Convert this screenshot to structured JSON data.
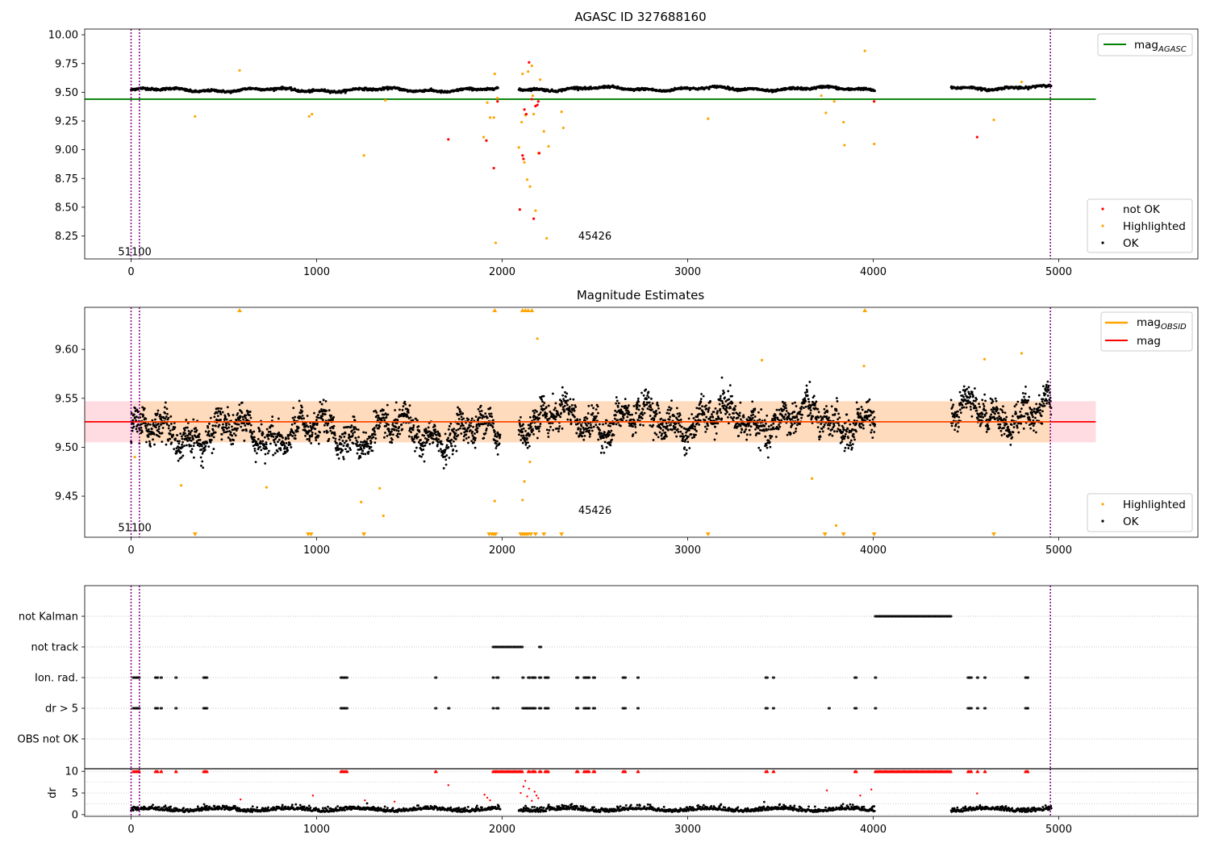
{
  "colors": {
    "ok": "#000000",
    "highlighted": "#ffa500",
    "not_ok": "#ff0000",
    "agasc_line": "#008000",
    "obsid_line": "#ffa500",
    "mag_line": "#ff0000",
    "band_outer": "#ffc0cb",
    "band_inner": "#ffdab9",
    "obs_vline": "#800080",
    "grid": "#b0b0b0"
  },
  "chart_data": [
    {
      "type": "scatter",
      "title": "AGASC ID 327688160",
      "xlim": [
        -250,
        5750
      ],
      "ylim": [
        8.05,
        10.05
      ],
      "x_ticks": [
        0,
        1000,
        2000,
        3000,
        4000,
        5000
      ],
      "y_ticks": [
        8.25,
        8.5,
        8.75,
        9.0,
        9.25,
        9.5,
        9.75,
        10.0
      ],
      "y_tick_labels": [
        "8.25",
        "8.50",
        "8.75",
        "9.00",
        "9.25",
        "9.50",
        "9.75",
        "10.00"
      ],
      "x_tick_labels": [
        "0",
        "1000",
        "2000",
        "3000",
        "4000",
        "5000"
      ],
      "hlines": [
        {
          "name": "mag_AGASC",
          "y": 9.44,
          "x_range": [
            -250,
            5200
          ]
        }
      ],
      "obs_vlines": [
        0,
        45,
        4955
      ],
      "annotations": [
        {
          "text": "51100",
          "x": 20,
          "y": 8.08
        },
        {
          "text": "45426",
          "x": 2500,
          "y": 8.22
        }
      ],
      "legend_line": {
        "label": "mag",
        "subscript": "AGASC",
        "location": "top-right"
      },
      "legend_points": {
        "location": "bottom-right",
        "entries": [
          "not OK",
          "Highlighted",
          "OK"
        ]
      },
      "ok_segments": [
        {
          "x": [
            0,
            1980
          ],
          "base": 9.52,
          "noise": 0.012
        },
        {
          "x": [
            2090,
            4010
          ],
          "base": 9.53,
          "noise": 0.012
        },
        {
          "x": [
            4420,
            4960
          ],
          "base": 9.54,
          "noise": 0.012
        }
      ],
      "highlighted_points": [
        [
          345,
          9.29
        ],
        [
          585,
          9.69
        ],
        [
          960,
          9.29
        ],
        [
          975,
          9.31
        ],
        [
          1255,
          8.95
        ],
        [
          1370,
          9.43
        ],
        [
          1900,
          9.11
        ],
        [
          1920,
          9.41
        ],
        [
          1935,
          9.28
        ],
        [
          1955,
          9.28
        ],
        [
          1960,
          9.66
        ],
        [
          1965,
          8.19
        ],
        [
          1975,
          9.45
        ],
        [
          2090,
          9.02
        ],
        [
          2105,
          9.24
        ],
        [
          2110,
          9.66
        ],
        [
          2120,
          8.89
        ],
        [
          2125,
          9.3
        ],
        [
          2135,
          8.74
        ],
        [
          2140,
          9.68
        ],
        [
          2150,
          8.68
        ],
        [
          2160,
          9.73
        ],
        [
          2165,
          9.47
        ],
        [
          2170,
          9.31
        ],
        [
          2180,
          8.47
        ],
        [
          2195,
          8.97
        ],
        [
          2205,
          9.61
        ],
        [
          2225,
          9.16
        ],
        [
          2240,
          8.23
        ],
        [
          2250,
          9.03
        ],
        [
          2320,
          9.33
        ],
        [
          2330,
          9.19
        ],
        [
          3110,
          9.27
        ],
        [
          3720,
          9.47
        ],
        [
          3745,
          9.32
        ],
        [
          3790,
          9.42
        ],
        [
          3840,
          9.24
        ],
        [
          3845,
          9.04
        ],
        [
          3955,
          9.86
        ],
        [
          4005,
          9.05
        ],
        [
          4650,
          9.26
        ],
        [
          4800,
          9.59
        ]
      ],
      "not_ok_points": [
        [
          1710,
          9.09
        ],
        [
          1915,
          9.08
        ],
        [
          1955,
          8.84
        ],
        [
          1975,
          9.42
        ],
        [
          2095,
          8.48
        ],
        [
          2110,
          8.95
        ],
        [
          2115,
          8.92
        ],
        [
          2120,
          9.35
        ],
        [
          2130,
          9.31
        ],
        [
          2145,
          9.76
        ],
        [
          2160,
          9.44
        ],
        [
          2170,
          8.4
        ],
        [
          2180,
          9.38
        ],
        [
          2190,
          9.39
        ],
        [
          2195,
          9.42
        ],
        [
          2200,
          8.97
        ],
        [
          4005,
          9.42
        ],
        [
          4560,
          9.11
        ]
      ]
    },
    {
      "type": "scatter",
      "title": "Magnitude Estimates",
      "xlim": [
        -250,
        5750
      ],
      "ylim": [
        9.408,
        9.643
      ],
      "x_ticks": [
        0,
        1000,
        2000,
        3000,
        4000,
        5000
      ],
      "y_ticks": [
        9.45,
        9.5,
        9.55,
        9.6
      ],
      "y_tick_labels": [
        "9.45",
        "9.50",
        "9.55",
        "9.60"
      ],
      "x_tick_labels": [
        "0",
        "1000",
        "2000",
        "3000",
        "4000",
        "5000"
      ],
      "mag": 9.526,
      "band_outer": [
        9.505,
        9.547,
        -250,
        5200
      ],
      "band_inner": [
        9.505,
        9.547,
        45,
        4955
      ],
      "obs_vlines": [
        0,
        45,
        4955
      ],
      "annotations": [
        {
          "text": "51100",
          "x": 20,
          "y": 9.414
        },
        {
          "text": "45426",
          "x": 2500,
          "y": 9.432
        }
      ],
      "legend_line": {
        "entries": [
          {
            "label": "mag",
            "subscript": "OBSID"
          },
          {
            "label": "mag",
            "subscript": ""
          }
        ],
        "location": "top-right"
      },
      "legend_points": {
        "location": "bottom-right",
        "entries": [
          "Highlighted",
          "OK"
        ]
      },
      "ok_segments": [
        {
          "x": [
            0,
            1990
          ],
          "base": 9.515,
          "noise": 0.018
        },
        {
          "x": [
            2090,
            4010
          ],
          "base": 9.528,
          "noise": 0.02
        },
        {
          "x": [
            4420,
            4960
          ],
          "base": 9.535,
          "noise": 0.02
        }
      ],
      "highlighted_points": [
        [
          20,
          9.49
        ],
        [
          270,
          9.461
        ],
        [
          730,
          9.459
        ],
        [
          1240,
          9.444
        ],
        [
          1340,
          9.458
        ],
        [
          1360,
          9.43
        ],
        [
          1960,
          9.445
        ],
        [
          2110,
          9.446
        ],
        [
          2120,
          9.465
        ],
        [
          2150,
          9.485
        ],
        [
          2190,
          9.611
        ],
        [
          3400,
          9.589
        ],
        [
          3670,
          9.468
        ],
        [
          3800,
          9.42
        ],
        [
          3950,
          9.583
        ],
        [
          4600,
          9.59
        ],
        [
          4800,
          9.596
        ]
      ],
      "upper_markers": [
        585,
        1960,
        2110,
        2125,
        2140,
        2160,
        3955
      ],
      "lower_markers": [
        345,
        955,
        970,
        1255,
        1930,
        1945,
        1955,
        1965,
        2100,
        2110,
        2120,
        2130,
        2140,
        2155,
        2180,
        2225,
        2320,
        3110,
        3740,
        3840,
        4005,
        4650
      ]
    },
    {
      "type": "scatter",
      "xlim": [
        -250,
        5750
      ],
      "x_ticks": [
        0,
        1000,
        2000,
        3000,
        4000,
        5000
      ],
      "x_tick_labels": [
        "0",
        "1000",
        "2000",
        "3000",
        "4000",
        "5000"
      ],
      "flag_rows": [
        "not Kalman",
        "not track",
        "Ion. rad.",
        "dr > 5",
        "OBS not OK"
      ],
      "obs_vlines": [
        0,
        45,
        4955
      ],
      "flags": {
        "not Kalman": [
          [
            4010,
            4420
          ]
        ],
        "not track": [
          [
            1950,
            2110
          ],
          [
            2200,
            2210
          ]
        ],
        "Ion. rad.": [
          [
            10,
            45
          ],
          [
            130,
            145
          ],
          [
            160,
            165
          ],
          [
            240,
            245
          ],
          [
            390,
            410
          ],
          [
            1130,
            1165
          ],
          [
            1640,
            1645
          ],
          [
            1950,
            1955
          ],
          [
            1970,
            1980
          ],
          [
            2110,
            2115
          ],
          [
            2140,
            2150
          ],
          [
            2160,
            2180
          ],
          [
            2200,
            2210
          ],
          [
            2230,
            2250
          ],
          [
            2400,
            2410
          ],
          [
            2440,
            2470
          ],
          [
            2490,
            2500
          ],
          [
            2650,
            2665
          ],
          [
            2730,
            2735
          ],
          [
            3420,
            3430
          ],
          [
            3460,
            3465
          ],
          [
            3900,
            3910
          ],
          [
            4010,
            4015
          ],
          [
            4510,
            4530
          ],
          [
            4560,
            4565
          ],
          [
            4600,
            4605
          ],
          [
            4820,
            4835
          ]
        ],
        "dr > 5": [
          [
            10,
            45
          ],
          [
            130,
            145
          ],
          [
            160,
            165
          ],
          [
            240,
            245
          ],
          [
            390,
            410
          ],
          [
            1130,
            1165
          ],
          [
            1640,
            1645
          ],
          [
            1710,
            1715
          ],
          [
            1950,
            1955
          ],
          [
            1970,
            1980
          ],
          [
            2110,
            2180
          ],
          [
            2200,
            2210
          ],
          [
            2230,
            2250
          ],
          [
            2400,
            2410
          ],
          [
            2440,
            2470
          ],
          [
            2490,
            2500
          ],
          [
            2650,
            2665
          ],
          [
            2730,
            2735
          ],
          [
            3420,
            3430
          ],
          [
            3460,
            3465
          ],
          [
            3760,
            3765
          ],
          [
            3900,
            3910
          ],
          [
            4010,
            4015
          ],
          [
            4510,
            4530
          ],
          [
            4560,
            4565
          ],
          [
            4600,
            4605
          ],
          [
            4820,
            4835
          ]
        ],
        "OBS not OK": []
      },
      "dr": {
        "ylabel": "dr",
        "y_ticks": [
          0,
          5,
          10
        ],
        "y_tick_labels": [
          "0",
          "5",
          "10"
        ],
        "ylim": [
          -0.4,
          10.6
        ],
        "clip_runs": [
          [
            10,
            45
          ],
          [
            130,
            145
          ],
          [
            160,
            165
          ],
          [
            240,
            245
          ],
          [
            390,
            410
          ],
          [
            1130,
            1165
          ],
          [
            1640,
            1645
          ],
          [
            1950,
            2110
          ],
          [
            2140,
            2150
          ],
          [
            2160,
            2180
          ],
          [
            2200,
            2210
          ],
          [
            2230,
            2250
          ],
          [
            2400,
            2410
          ],
          [
            2440,
            2470
          ],
          [
            2490,
            2500
          ],
          [
            2650,
            2665
          ],
          [
            2730,
            2735
          ],
          [
            3420,
            3430
          ],
          [
            3460,
            3465
          ],
          [
            3900,
            3910
          ],
          [
            4010,
            4420
          ],
          [
            4510,
            4530
          ],
          [
            4560,
            4565
          ],
          [
            4600,
            4605
          ],
          [
            4820,
            4835
          ]
        ],
        "red_points": [
          [
            590,
            3.5
          ],
          [
            980,
            4.4
          ],
          [
            1260,
            3.3
          ],
          [
            1420,
            3.0
          ],
          [
            1710,
            6.8
          ],
          [
            1905,
            4.6
          ],
          [
            1920,
            3.9
          ],
          [
            1935,
            3.3
          ],
          [
            2100,
            5.0
          ],
          [
            2115,
            6.5
          ],
          [
            2125,
            7.8
          ],
          [
            2135,
            4.2
          ],
          [
            2145,
            6.0
          ],
          [
            2160,
            3.2
          ],
          [
            2175,
            5.3
          ],
          [
            2185,
            4.4
          ],
          [
            2195,
            3.8
          ],
          [
            3750,
            5.6
          ],
          [
            3930,
            4.4
          ],
          [
            3990,
            5.8
          ],
          [
            4560,
            4.9
          ]
        ],
        "ok_segments": [
          [
            0,
            1990
          ],
          [
            2090,
            4010
          ],
          [
            4420,
            4960
          ]
        ]
      }
    }
  ],
  "texts": {
    "panel1_title": "AGASC ID 327688160",
    "panel2_title": "Magnitude Estimates",
    "legend1_line_label": "mag",
    "legend1_line_sub": "AGASC",
    "legend1_not_ok": "not OK",
    "legend1_highlighted": "Highlighted",
    "legend1_ok": "OK",
    "legend2_line1_label": "mag",
    "legend2_line1_sub": "OBSID",
    "legend2_line2_label": "mag",
    "legend2_highlighted": "Highlighted",
    "legend2_ok": "OK",
    "annot_obs_a": "51100",
    "annot_obs_b": "45426",
    "dr_ylabel": "dr"
  }
}
